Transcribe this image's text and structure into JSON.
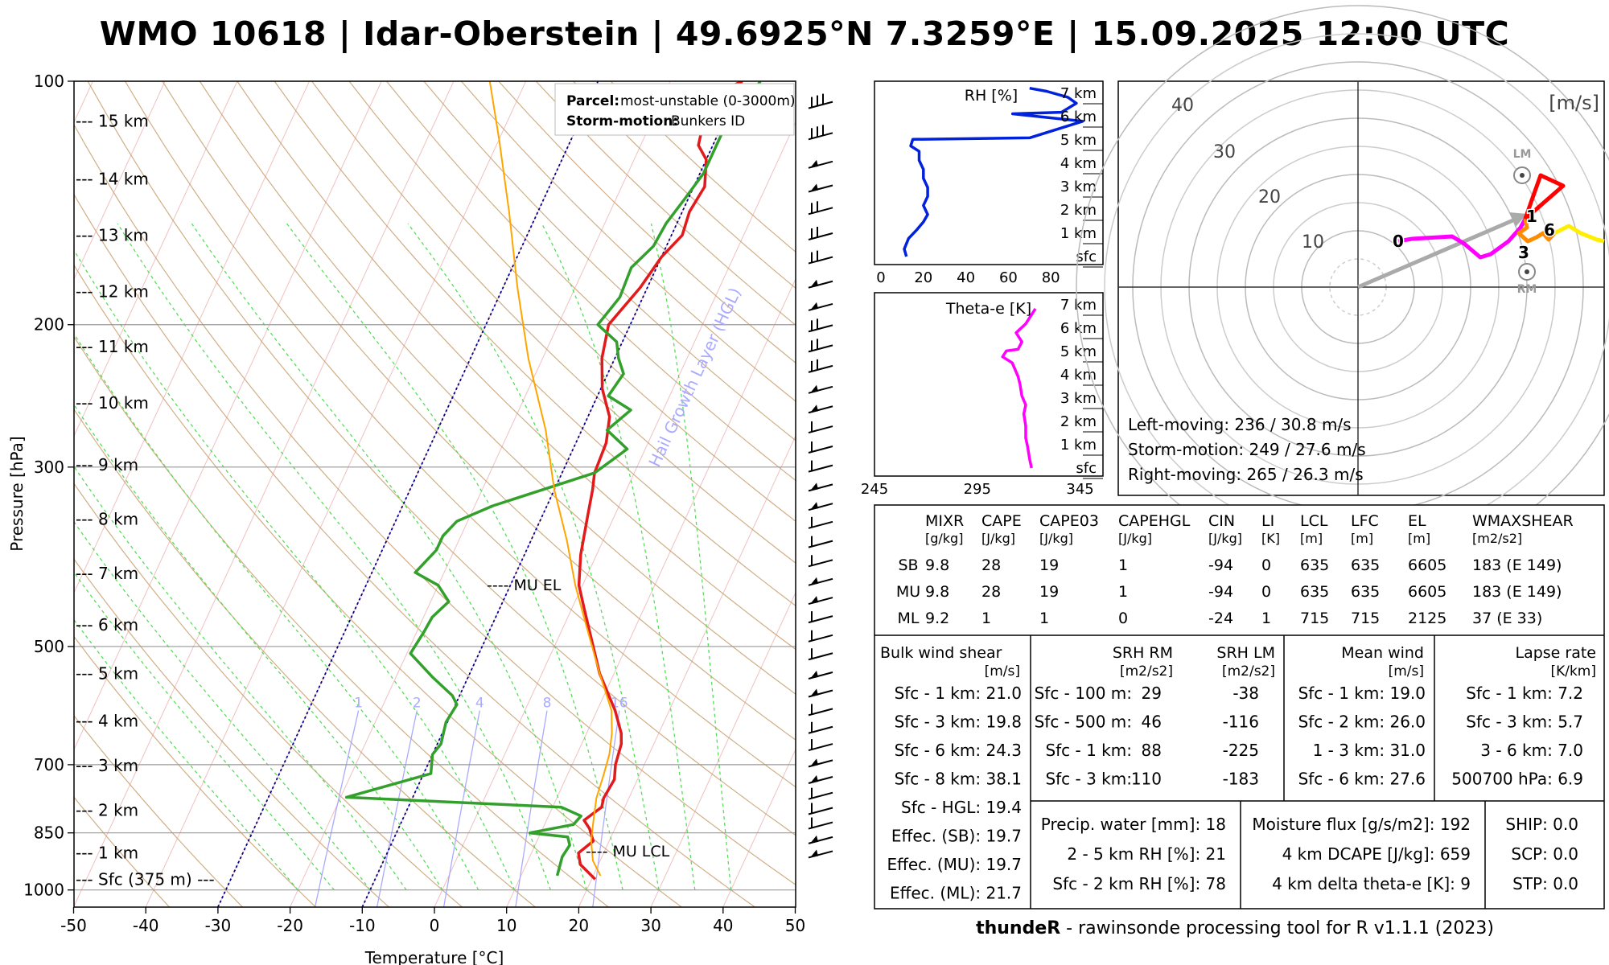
{
  "title": "WMO 10618 | Idar-Oberstein | 49.6925°N 7.3259°E | 15.09.2025 12:00 UTC",
  "credit": {
    "bold": "thundeR",
    "rest": " - rawinsonde processing tool for R v1.1.1 (2023)"
  },
  "skewt": {
    "xlabel": "Temperature [°C]",
    "ylabel": "Pressure [hPa]",
    "x_ticks": [
      "-50",
      "-40",
      "-30",
      "-20",
      "-10",
      "0",
      "10",
      "20",
      "30",
      "40",
      "50"
    ],
    "p_ticks": [
      {
        "p": 100,
        "label": "100"
      },
      {
        "p": 200,
        "label": "200"
      },
      {
        "p": 300,
        "label": "300"
      },
      {
        "p": 500,
        "label": "500"
      },
      {
        "p": 700,
        "label": "700"
      },
      {
        "p": 850,
        "label": "850"
      },
      {
        "p": 1000,
        "label": "1000"
      }
    ],
    "height_labels": [
      {
        "p": 112,
        "label": "--- 15 km"
      },
      {
        "p": 132,
        "label": "--- 14 km"
      },
      {
        "p": 155,
        "label": "--- 13 km"
      },
      {
        "p": 182,
        "label": "--- 12 km"
      },
      {
        "p": 213,
        "label": "--- 11 km"
      },
      {
        "p": 250,
        "label": "--- 10 km"
      },
      {
        "p": 298,
        "label": "--- 9 km"
      },
      {
        "p": 348,
        "label": "--- 8 km"
      },
      {
        "p": 406,
        "label": "--- 7 km"
      },
      {
        "p": 470,
        "label": "--- 6 km"
      },
      {
        "p": 540,
        "label": "--- 5 km"
      },
      {
        "p": 618,
        "label": "--- 4 km"
      },
      {
        "p": 702,
        "label": "--- 3 km"
      },
      {
        "p": 797,
        "label": "--- 2 km"
      },
      {
        "p": 900,
        "label": "--- 1 km"
      },
      {
        "p": 970,
        "label": "--- Sfc (375 m) ---"
      }
    ],
    "legend": {
      "parcel_label": "Parcel:",
      "parcel_value": "most-unstable (0-3000m)",
      "storm_label": "Storm-motion:",
      "storm_value": "Bunkers ID"
    },
    "mu_el_label": "---- MU EL",
    "mu_lcl_label": "---- MU LCL",
    "hgl_label": "Hail Growth Layer (HGL)",
    "mixing_ratio_labels": [
      "1",
      "2",
      "4",
      "8",
      "16"
    ],
    "colors": {
      "temperature": "#e31a1c",
      "dewpoint": "#33a02c",
      "parcel": "#ffa500",
      "hgl": "#00008b",
      "dry_adiabat": "#c8a070",
      "moist_adiabat": "#55dd55",
      "mixing_ratio": "#aaaaff",
      "isotherm": "#f0c0c0"
    }
  },
  "chart_data": [
    {
      "type": "line",
      "title": "",
      "xlabel": "Temperature [°C]",
      "ylabel": "Pressure [hPa]",
      "xlim": [
        -50,
        50
      ],
      "ylim": [
        1000,
        100
      ],
      "y_scale": "log",
      "series": [
        {
          "name": "",
          "role": "temperature",
          "points": [
            [
              20.5,
              970
            ],
            [
              17.5,
              930
            ],
            [
              16.5,
              900
            ],
            [
              17.8,
              870
            ],
            [
              16.5,
              840
            ],
            [
              15.2,
              820
            ],
            [
              16.8,
              790
            ],
            [
              16.5,
              770
            ],
            [
              16.8,
              730
            ],
            [
              16.0,
              700
            ],
            [
              15.5,
              660
            ],
            [
              14.8,
              640
            ],
            [
              12.5,
              600
            ],
            [
              8.0,
              540
            ],
            [
              4.0,
              480
            ],
            [
              1.8,
              450
            ],
            [
              -0.5,
              420
            ],
            [
              -2.2,
              385
            ],
            [
              -3.7,
              345
            ],
            [
              -4.7,
              320
            ],
            [
              -5.5,
              305
            ],
            [
              -5.8,
              280
            ],
            [
              -7.0,
              260
            ],
            [
              -9.8,
              240
            ],
            [
              -11.8,
              220
            ],
            [
              -13.0,
              200
            ],
            [
              -11.0,
              180
            ],
            [
              -10.0,
              165
            ],
            [
              -8.5,
              155
            ],
            [
              -9.0,
              145
            ],
            [
              -8.5,
              135
            ],
            [
              -10.0,
              125
            ],
            [
              -12.0,
              120
            ],
            [
              -13.0,
              110
            ],
            [
              -12.5,
              103
            ],
            [
              -10.0,
              100
            ]
          ]
        },
        {
          "name": "",
          "role": "dewpoint",
          "points": [
            [
              15.0,
              960
            ],
            [
              14.5,
              910
            ],
            [
              14.8,
              880
            ],
            [
              14.0,
              860
            ],
            [
              8.5,
              850
            ],
            [
              14.0,
              830
            ],
            [
              14.5,
              810
            ],
            [
              11.2,
              790
            ],
            [
              -19.2,
              768
            ],
            [
              -9.0,
              718
            ],
            [
              -10.0,
              680
            ],
            [
              -9.5,
              660
            ],
            [
              -10.2,
              620
            ],
            [
              -9.8,
              590
            ],
            [
              -11.0,
              575
            ],
            [
              -15.0,
              545
            ],
            [
              -19.5,
              510
            ],
            [
              -19.0,
              480
            ],
            [
              -18.8,
              460
            ],
            [
              -17.5,
              440
            ],
            [
              -20.0,
              420
            ],
            [
              -24.0,
              405
            ],
            [
              -22.5,
              380
            ],
            [
              -22.5,
              365
            ],
            [
              -21.5,
              350
            ],
            [
              -17.5,
              335
            ],
            [
              -5.5,
              305
            ],
            [
              -2.5,
              285
            ],
            [
              -6.5,
              270
            ],
            [
              -4.5,
              255
            ],
            [
              -8.5,
              245
            ],
            [
              -7.8,
              230
            ],
            [
              -9.5,
              220
            ],
            [
              -10.8,
              210
            ],
            [
              -14.5,
              200
            ],
            [
              -13.2,
              185
            ],
            [
              -13.5,
              170
            ],
            [
              -11.8,
              160
            ],
            [
              -11.5,
              150
            ],
            [
              -10.5,
              140
            ],
            [
              -9.5,
              130
            ],
            [
              -9.5,
              115
            ],
            [
              -8.5,
              110
            ],
            [
              -7.5,
              100
            ]
          ]
        },
        {
          "name": "",
          "role": "parcel",
          "points": [
            [
              21.0,
              960
            ],
            [
              19.0,
              920
            ],
            [
              17.5,
              870
            ],
            [
              16.5,
              820
            ],
            [
              15.5,
              770
            ],
            [
              15.0,
              720
            ],
            [
              14.5,
              680
            ],
            [
              13.5,
              640
            ],
            [
              12.0,
              600
            ],
            [
              8.0,
              540
            ],
            [
              3.0,
              470
            ],
            [
              -1.0,
              420
            ],
            [
              -5.0,
              370
            ],
            [
              -10.0,
              320
            ],
            [
              -15.0,
              270
            ],
            [
              -22.0,
              220
            ],
            [
              -28.0,
              180
            ],
            [
              -34.0,
              145
            ],
            [
              -40.0,
              118
            ],
            [
              -45.0,
              100
            ]
          ]
        }
      ]
    },
    {
      "type": "line",
      "title": "RH [%]",
      "xlim": [
        0,
        100
      ],
      "x_ticks": [
        "0",
        "20",
        "40",
        "60",
        "80"
      ],
      "y_labels": [
        "7 km",
        "6 km",
        "5 km",
        "4 km",
        "3 km",
        "2 km",
        "1 km",
        "sfc"
      ],
      "series": [
        {
          "name": "",
          "color": "#0022dd",
          "points": [
            [
              12,
              0.0
            ],
            [
              11,
              0.25
            ],
            [
              13,
              0.6
            ],
            [
              17,
              0.9
            ],
            [
              20,
              1.15
            ],
            [
              22,
              1.4
            ],
            [
              20,
              1.7
            ],
            [
              22,
              2.0
            ],
            [
              22,
              2.3
            ],
            [
              20,
              2.6
            ],
            [
              20,
              2.9
            ],
            [
              18,
              3.2
            ],
            [
              18,
              3.5
            ],
            [
              14,
              3.68
            ],
            [
              15,
              3.9
            ],
            [
              70,
              3.95
            ],
            [
              95,
              4.5
            ],
            [
              62,
              4.75
            ],
            [
              85,
              4.8
            ],
            [
              92,
              5.1
            ],
            [
              88,
              5.3
            ],
            [
              78,
              5.5
            ],
            [
              70,
              5.6
            ]
          ]
        }
      ]
    },
    {
      "type": "line",
      "title": "Theta-e [K]",
      "xlim": [
        245,
        355
      ],
      "x_ticks": [
        "245",
        "295",
        "345"
      ],
      "y_labels": [
        "7 km",
        "6 km",
        "5 km",
        "4 km",
        "3 km",
        "2 km",
        "1 km",
        "sfc"
      ],
      "series": [
        {
          "name": "",
          "color": "#ff00ff",
          "points": [
            [
              323,
              0.0
            ],
            [
              322,
              0.3
            ],
            [
              321,
              0.7
            ],
            [
              320,
              1.0
            ],
            [
              320,
              1.4
            ],
            [
              319,
              1.8
            ],
            [
              320,
              2.1
            ],
            [
              318,
              2.4
            ],
            [
              317,
              2.8
            ],
            [
              316,
              3.05
            ],
            [
              313,
              3.5
            ],
            [
              308,
              3.7
            ],
            [
              310,
              3.9
            ],
            [
              316,
              3.95
            ],
            [
              318,
              4.2
            ],
            [
              315,
              4.5
            ],
            [
              320,
              4.8
            ],
            [
              323,
              5.1
            ],
            [
              325,
              5.3
            ]
          ]
        }
      ]
    },
    {
      "type": "line",
      "title": "[m/s]",
      "ring_labels": [
        "10",
        "20",
        "30",
        "40"
      ],
      "series": [
        {
          "name": "",
          "segment": "0-1 km",
          "color": "#ff00ff",
          "points": [
            [
              -1,
              0
            ],
            [
              -0.94,
              0.05
            ],
            [
              -0.86,
              0.07
            ],
            [
              -0.79,
              0.05
            ],
            [
              -0.77,
              -0.01
            ],
            [
              -0.75,
              0
            ]
          ]
        },
        {
          "name": "",
          "segment": "1-3 km",
          "color": "#ff8c00",
          "points": [
            [
              -0.75,
              0
            ],
            [
              -0.72,
              0.04
            ],
            [
              -0.7,
              -0.02
            ],
            [
              -0.72,
              0.03
            ],
            [
              -0.66,
              0
            ],
            [
              -0.61,
              0.04
            ],
            [
              -0.56,
              0.04
            ]
          ]
        },
        {
          "name": "",
          "segment": "3-6 km",
          "color": "#ffee00",
          "points": [
            [
              -0.56,
              0.04
            ],
            [
              -0.47,
              0.05
            ],
            [
              -0.4,
              0.04
            ],
            [
              -0.3,
              0.02
            ],
            [
              -0.25,
              0.0
            ]
          ]
        },
        {
          "name": "",
          "segment": "6-12 km",
          "color": "#ff0000",
          "points": [
            [
              -0.72,
              0.02
            ],
            [
              -0.6,
              0.3
            ],
            [
              -0.57,
              0.48
            ],
            [
              -0.51,
              0.41
            ],
            [
              -0.72,
              0.02
            ]
          ]
        }
      ],
      "point_labels": [
        "0",
        "1",
        "3",
        "6",
        "LM",
        "RM"
      ],
      "texts": [
        "Left-moving: 236 / 30.8 m/s",
        "Storm-motion: 249 / 27.6 m/s",
        "Right-moving: 265 / 26.3 m/s"
      ]
    },
    {
      "type": "table",
      "columns": [
        {
          "name": "MIXR",
          "unit": "[g/kg]"
        },
        {
          "name": "CAPE",
          "unit": "[J/kg]"
        },
        {
          "name": "CAPE03",
          "unit": "[J/kg]"
        },
        {
          "name": "CAPEHGL",
          "unit": "[J/kg]"
        },
        {
          "name": "CIN",
          "unit": "[J/kg]"
        },
        {
          "name": "LI",
          "unit": "[K]"
        },
        {
          "name": "LCL",
          "unit": "[m]"
        },
        {
          "name": "LFC",
          "unit": "[m]"
        },
        {
          "name": "EL",
          "unit": "[m]"
        },
        {
          "name": "WMAXSHEAR",
          "unit": "[m2/s2]"
        }
      ],
      "rows": [
        {
          "label": "SB",
          "values": [
            "9.8",
            "28",
            "19",
            "1",
            "-94",
            "0",
            "635",
            "635",
            "6605",
            "183  (E 149)"
          ]
        },
        {
          "label": "MU",
          "values": [
            "9.8",
            "28",
            "19",
            "1",
            "-94",
            "0",
            "635",
            "635",
            "6605",
            "183  (E 149)"
          ]
        },
        {
          "label": "ML",
          "values": [
            "9.2",
            "1",
            "1",
            "0",
            "-24",
            "1",
            "715",
            "715",
            "2125",
            "37    (E 33)"
          ]
        }
      ]
    }
  ],
  "bws": {
    "title": "Bulk wind shear",
    "unit": "[m/s]",
    "rows": [
      "Sfc - 1 km: 21.0",
      "Sfc - 3 km: 19.8",
      "Sfc - 6 km: 24.3",
      "Sfc - 8 km: 38.1",
      "Sfc - HGL: 19.4",
      "Effec. (SB): 19.7",
      "Effec. (MU): 19.7",
      "Effec. (ML): 21.7"
    ]
  },
  "srh": {
    "h1": "SRH RM",
    "h2": "SRH LM",
    "u1": "[m2/s2]",
    "u2": "[m2/s2]",
    "rows": [
      {
        "label": "Sfc - 100 m:",
        "rm": "29",
        "lm": "-38"
      },
      {
        "label": "Sfc - 500 m:",
        "rm": "46",
        "lm": "-116"
      },
      {
        "label": "Sfc - 1 km:",
        "rm": "88",
        "lm": "-225"
      },
      {
        "label": "Sfc - 3 km:",
        "rm": "110",
        "lm": "-183"
      }
    ]
  },
  "meanwind": {
    "title": "Mean wind",
    "unit": "[m/s]",
    "rows": [
      "Sfc - 1 km: 19.0",
      "Sfc - 2 km: 26.0",
      "1 - 3 km: 31.0",
      "Sfc - 6 km: 27.6"
    ]
  },
  "lapse": {
    "title": "Lapse rate",
    "unit": "[K/km]",
    "rows": [
      "Sfc - 1 km: 7.2",
      "Sfc - 3 km: 5.7",
      "3 - 6 km: 7.0",
      "500700 hPa: 6.9"
    ]
  },
  "misc1": [
    "Precip. water [mm]: 18",
    "2 - 5 km RH [%]: 21",
    "Sfc - 2 km RH [%]: 78"
  ],
  "misc2": [
    "Moisture flux [g/s/m2]: 192",
    "4 km DCAPE [J/kg]: 659",
    "4 km delta theta-e [K]: 9"
  ],
  "misc3": [
    "SHIP: 0.0",
    "SCP: 0.0",
    "STP: 0.0"
  ]
}
